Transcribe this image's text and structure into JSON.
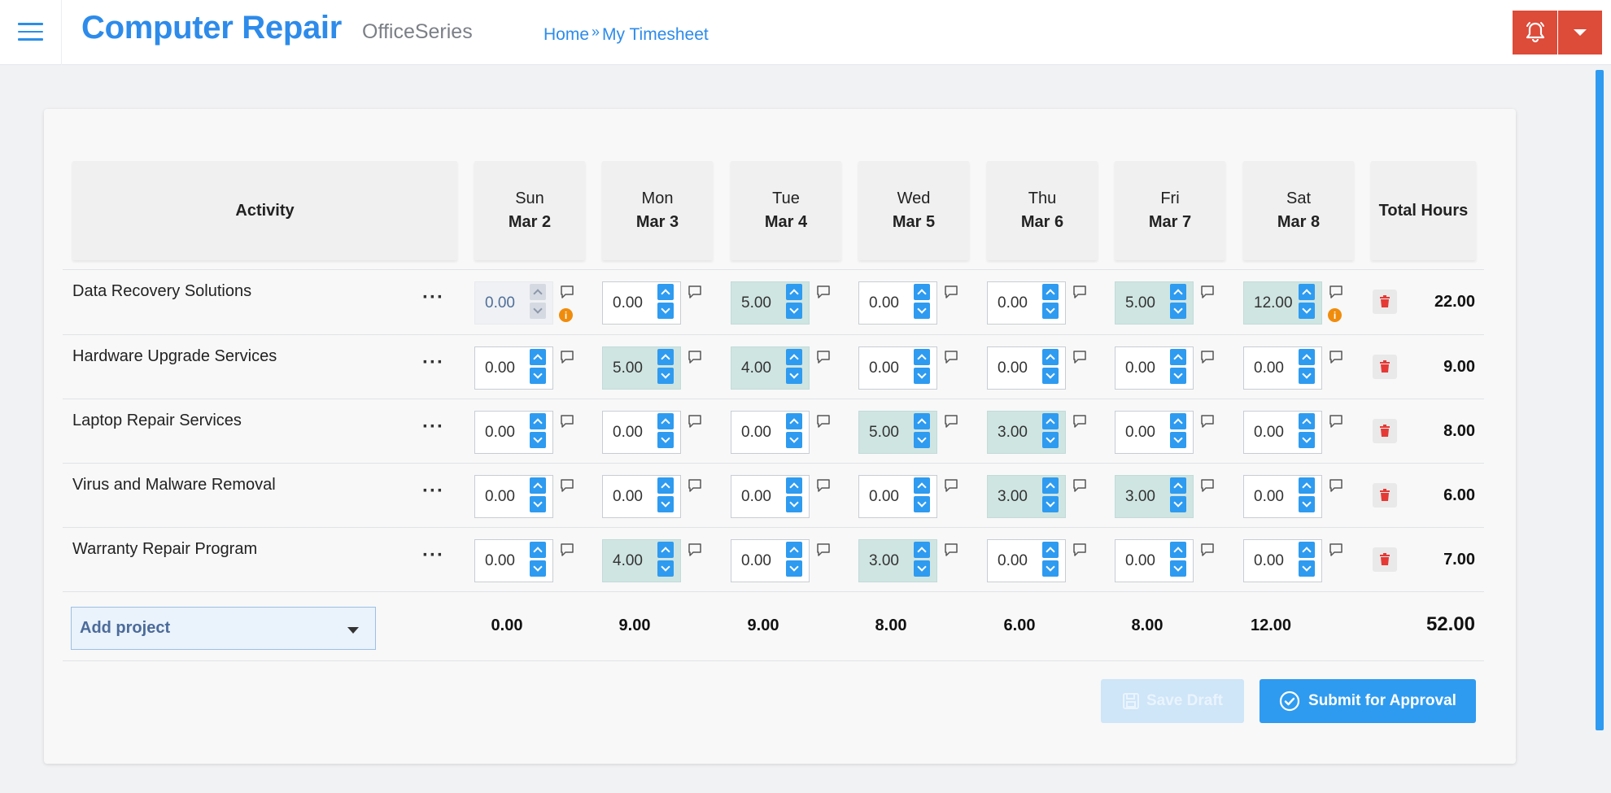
{
  "header": {
    "brand": "Computer Repair",
    "subtitle": "OfficeSeries",
    "breadcrumb": {
      "home": "Home",
      "separator": "»",
      "current": "My Timesheet"
    }
  },
  "table": {
    "activity_header": "Activity",
    "total_header": "Total Hours",
    "days": [
      {
        "day": "Sun",
        "date": "Mar 2"
      },
      {
        "day": "Mon",
        "date": "Mar 3"
      },
      {
        "day": "Tue",
        "date": "Mar 4"
      },
      {
        "day": "Wed",
        "date": "Mar 5"
      },
      {
        "day": "Thu",
        "date": "Mar 6"
      },
      {
        "day": "Fri",
        "date": "Mar 7"
      },
      {
        "day": "Sat",
        "date": "Mar 8"
      }
    ],
    "rows": [
      {
        "name": "Data Recovery Solutions",
        "menu": "···",
        "hours": [
          "0.00",
          "0.00",
          "5.00",
          "0.00",
          "0.00",
          "5.00",
          "12.00"
        ],
        "total": "22.00"
      },
      {
        "name": "Hardware Upgrade Services",
        "menu": "···",
        "hours": [
          "0.00",
          "5.00",
          "4.00",
          "0.00",
          "0.00",
          "0.00",
          "0.00"
        ],
        "total": "9.00"
      },
      {
        "name": "Laptop Repair Services",
        "menu": "···",
        "hours": [
          "0.00",
          "0.00",
          "0.00",
          "5.00",
          "3.00",
          "0.00",
          "0.00"
        ],
        "total": "8.00"
      },
      {
        "name": "Virus and Malware Removal",
        "menu": "···",
        "hours": [
          "0.00",
          "0.00",
          "0.00",
          "0.00",
          "3.00",
          "3.00",
          "0.00"
        ],
        "total": "6.00"
      },
      {
        "name": "Warranty Repair Program",
        "menu": "···",
        "hours": [
          "0.00",
          "4.00",
          "0.00",
          "3.00",
          "0.00",
          "0.00",
          "0.00"
        ],
        "total": "7.00"
      }
    ],
    "day_totals": [
      "0.00",
      "9.00",
      "9.00",
      "8.00",
      "6.00",
      "8.00",
      "12.00"
    ],
    "grand_total": "52.00"
  },
  "add_project": {
    "label": "Add project"
  },
  "actions": {
    "save_draft": "Save Draft",
    "submit": "Submit for Approval"
  },
  "colors": {
    "accent": "#2e9bf0",
    "alert": "#dd4b39",
    "highlight": "#cfe5e2",
    "warning": "#f08c0c"
  }
}
